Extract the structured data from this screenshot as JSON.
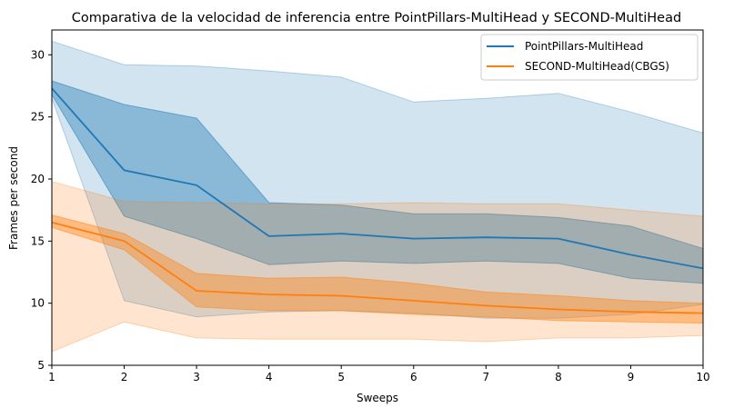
{
  "chart_data": {
    "type": "line",
    "title": "Comparativa de la velocidad de inferencia entre PointPillars-MultiHead y SECOND-MultiHead",
    "xlabel": "Sweeps",
    "ylabel": "Frames per second",
    "xlim": [
      1,
      10
    ],
    "ylim": [
      5,
      32
    ],
    "xticks": [
      "1",
      "2",
      "3",
      "4",
      "5",
      "6",
      "7",
      "8",
      "9",
      "10"
    ],
    "yticks": [
      "5",
      "10",
      "15",
      "20",
      "25",
      "30"
    ],
    "grid": false,
    "legend_position": "top-right",
    "x": [
      1,
      2,
      3,
      4,
      5,
      6,
      7,
      8,
      9,
      10
    ],
    "series": [
      {
        "name": "PointPillars-MultiHead",
        "color": "#1f77b4",
        "values": [
          27.3,
          20.7,
          19.5,
          15.4,
          15.6,
          15.2,
          15.3,
          15.2,
          13.9,
          12.8
        ],
        "band_inner_lower": [
          26.8,
          17.0,
          15.2,
          13.1,
          13.4,
          13.2,
          13.4,
          13.2,
          12.0,
          11.6
        ],
        "band_inner_upper": [
          27.9,
          26.0,
          24.9,
          18.1,
          17.9,
          17.2,
          17.2,
          16.9,
          16.2,
          14.4
        ],
        "band_outer_lower": [
          26.5,
          10.2,
          8.9,
          9.3,
          9.4,
          9.2,
          8.8,
          8.8,
          9.1,
          9.9
        ],
        "band_outer_upper": [
          31.1,
          29.2,
          29.1,
          28.7,
          28.2,
          26.2,
          26.5,
          26.9,
          25.4,
          23.7
        ]
      },
      {
        "name": "SECOND-MultiHead(CBGS)",
        "color": "#ff7f0e",
        "values": [
          16.5,
          15.0,
          11.0,
          10.7,
          10.6,
          10.2,
          9.8,
          9.5,
          9.3,
          9.2
        ],
        "band_inner_lower": [
          16.1,
          14.3,
          9.7,
          9.4,
          9.4,
          9.1,
          8.9,
          8.6,
          8.5,
          8.4
        ],
        "band_inner_upper": [
          17.1,
          15.6,
          12.4,
          12.0,
          12.1,
          11.6,
          10.9,
          10.6,
          10.2,
          10.0
        ],
        "band_outer_lower": [
          6.1,
          8.5,
          7.2,
          7.1,
          7.1,
          7.1,
          6.9,
          7.2,
          7.2,
          7.4
        ],
        "band_outer_upper": [
          19.8,
          18.2,
          18.1,
          18.0,
          18.0,
          18.1,
          18.0,
          18.0,
          17.5,
          17.0
        ]
      }
    ]
  }
}
